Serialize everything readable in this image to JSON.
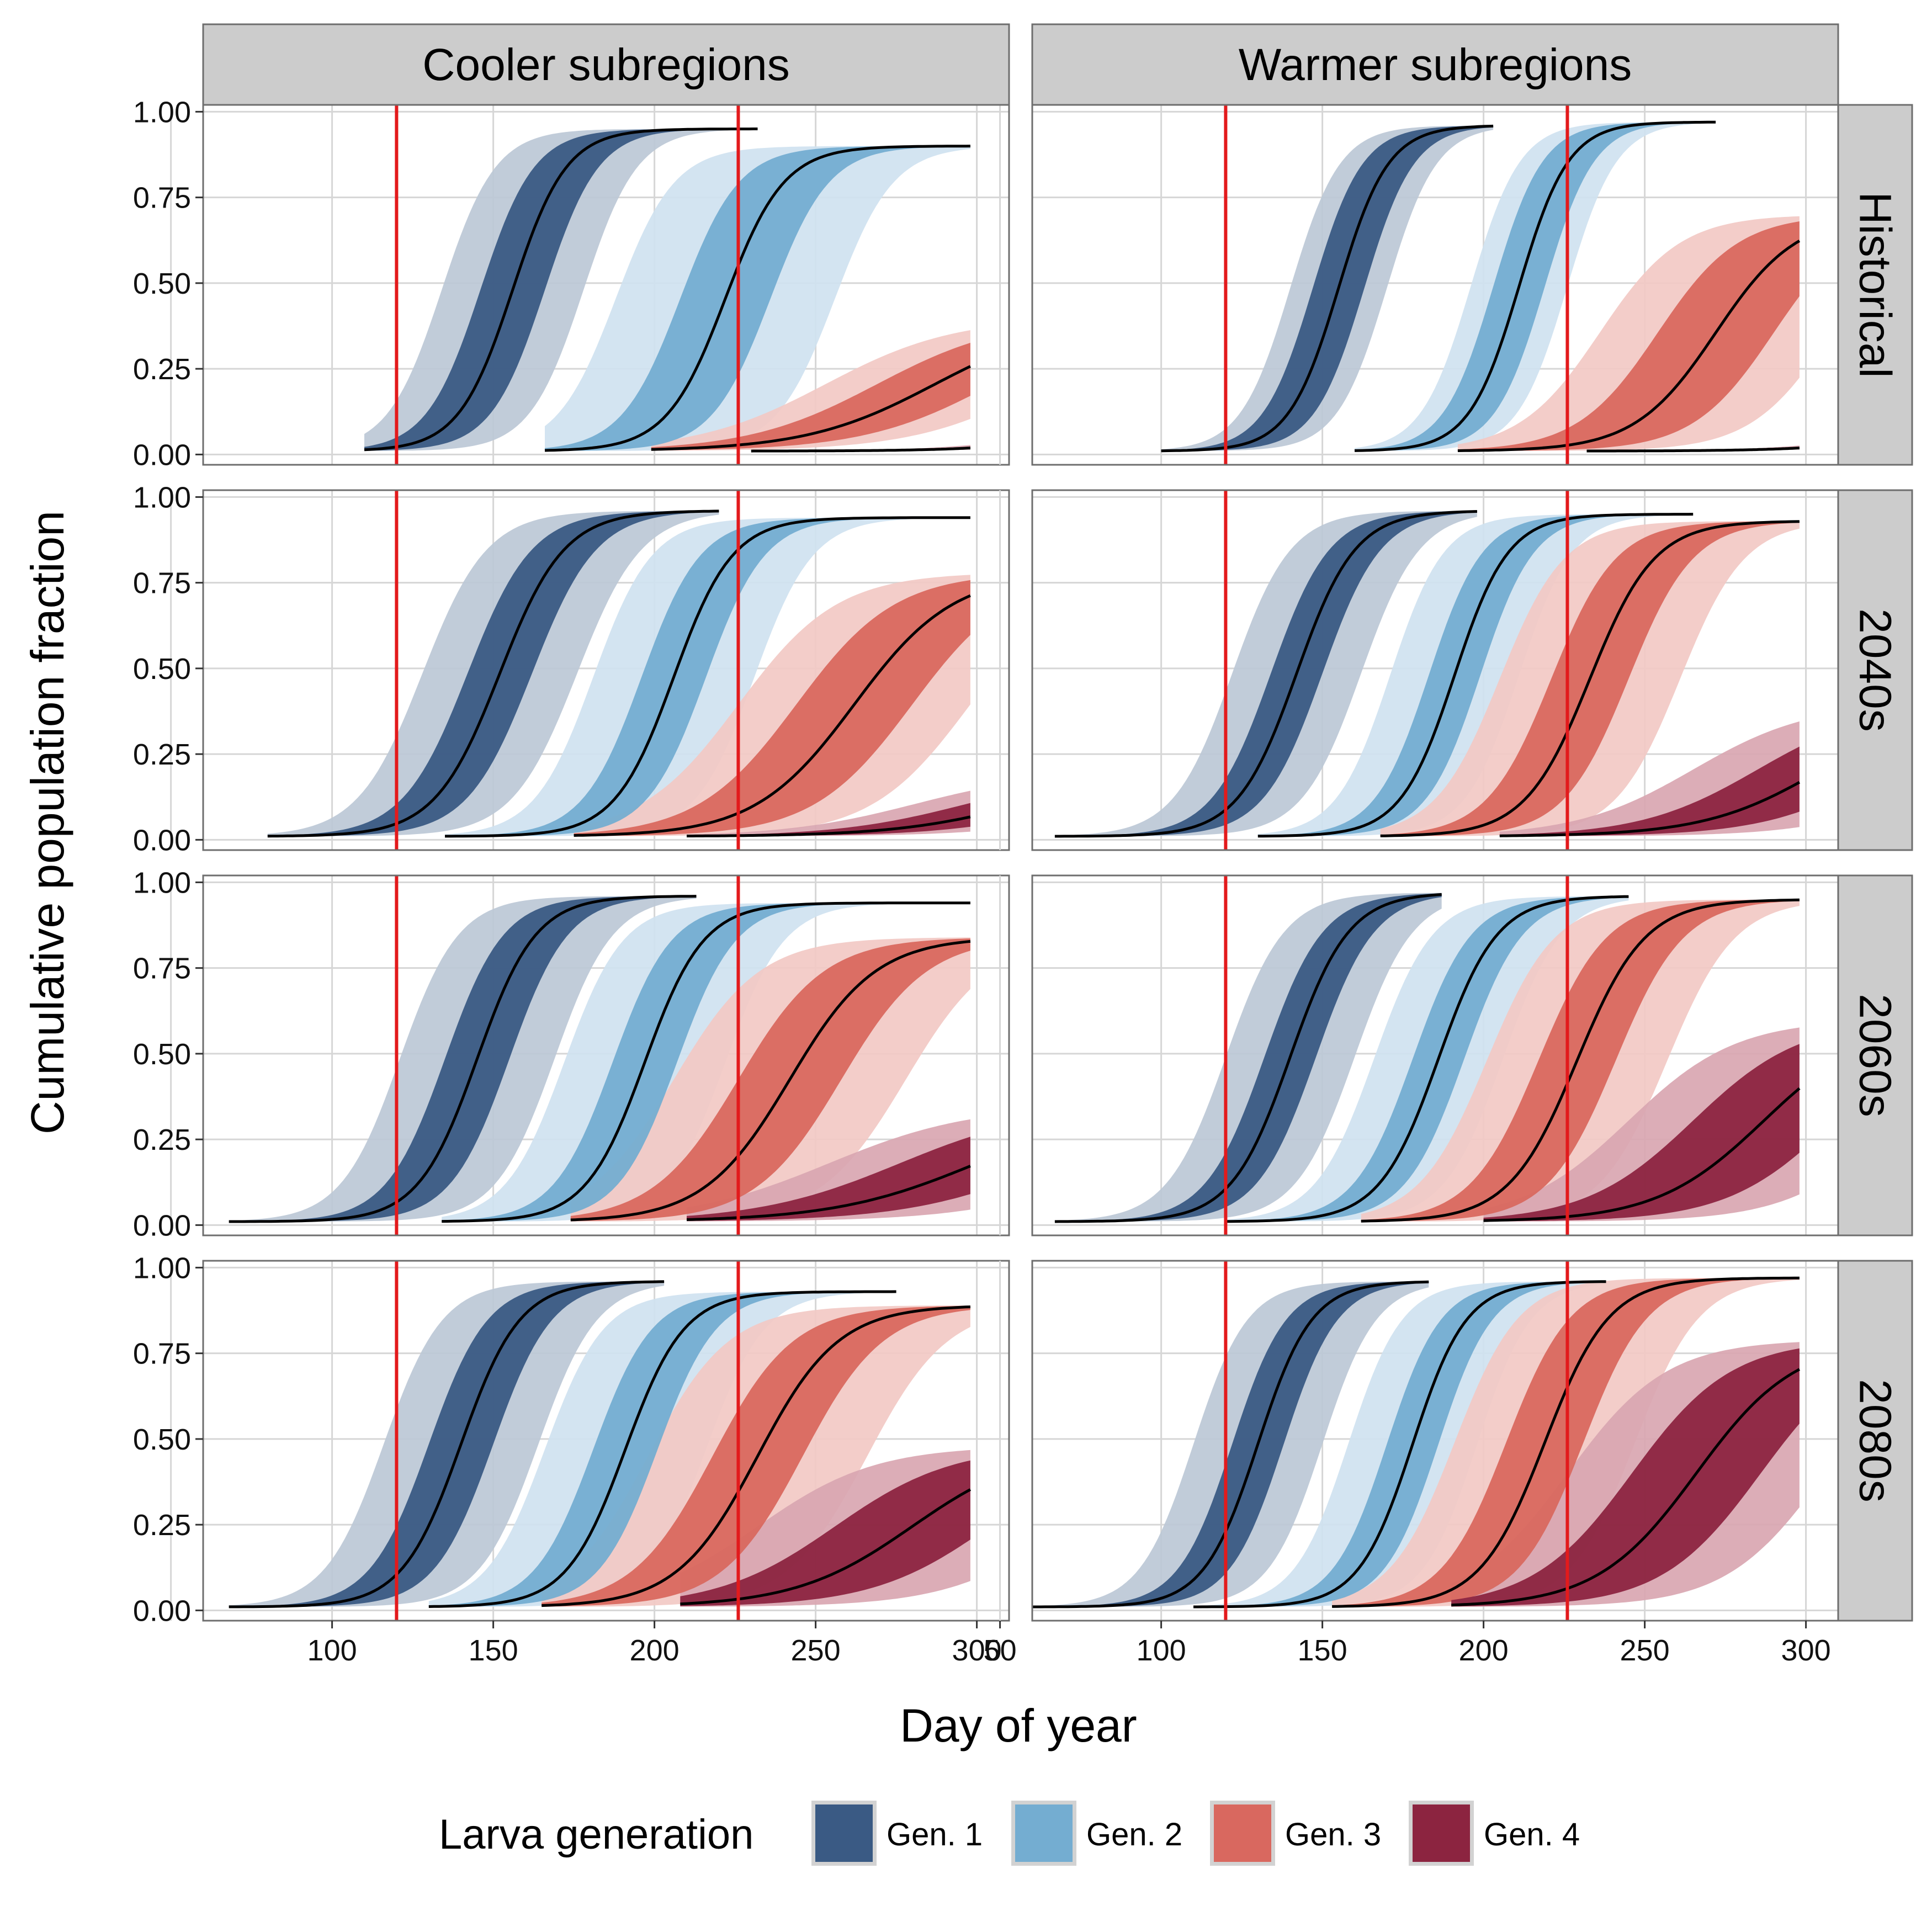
{
  "chart_data": {
    "type": "area",
    "title": "",
    "xlabel": "Day of year",
    "ylabel": "Cumulative population fraction",
    "xlim": [
      60,
      310
    ],
    "ylim": [
      -0.03,
      1.02
    ],
    "columns": [
      {
        "key": "cooler",
        "label": "Cooler subregions",
        "xticks": [
          100,
          150,
          200,
          250,
          300
        ],
        "xticklabels": [
          "100",
          "150",
          "200",
          "250",
          "300"
        ]
      },
      {
        "key": "warmer",
        "label": "Warmer subregions",
        "xticks": [
          50,
          100,
          150,
          200,
          250,
          300
        ],
        "xticklabels": [
          "50",
          "100",
          "150",
          "200",
          "250",
          "300"
        ]
      }
    ],
    "rows": [
      {
        "key": "historical",
        "label": "Historical"
      },
      {
        "key": "2040s",
        "label": "2040s"
      },
      {
        "key": "2060s",
        "label": "2060s"
      },
      {
        "key": "2080s",
        "label": "2080s"
      }
    ],
    "yticks": [
      0,
      0.25,
      0.5,
      0.75,
      1
    ],
    "yticklabels": [
      "0.00",
      "0.25",
      "0.50",
      "0.75",
      "1.00"
    ],
    "vlines": [
      120,
      226
    ],
    "vline_color": "#e31a1c",
    "grid": true,
    "legend": {
      "title": "Larva generation",
      "position": "bottom",
      "items": [
        {
          "label": "Gen. 1",
          "color": "#3a5a84"
        },
        {
          "label": "Gen. 2",
          "color": "#74add1"
        },
        {
          "label": "Gen. 3",
          "color": "#d9685f"
        },
        {
          "label": "Gen. 4",
          "color": "#8c2440"
        }
      ],
      "outer_colors": [
        "#bcc8d6",
        "#cfe2f0",
        "#f2c9c4",
        "#d9a6b1"
      ]
    },
    "series": [
      {
        "column": "cooler",
        "row": "historical",
        "curves": [
          {
            "gen": 1,
            "start": 110,
            "end": 232,
            "mid": 156,
            "k": 0.12,
            "max": 0.95,
            "base": 0.01,
            "inner": 10,
            "outer": 22
          },
          {
            "gen": 2,
            "start": 166,
            "end": 298,
            "mid": 222,
            "k": 0.11,
            "max": 0.9,
            "base": 0.01,
            "inner": 14,
            "outer": 34
          },
          {
            "gen": 3,
            "start": 199,
            "end": 298,
            "mid": 287,
            "k": 0.05,
            "max": 0.4,
            "base": 0.01,
            "inner": 18,
            "outer": 34
          },
          {
            "gen": 4,
            "start": 230,
            "end": 298,
            "mid": 330,
            "k": 0.06,
            "max": 0.08,
            "base": 0.01,
            "inner": 8,
            "outer": 14
          }
        ]
      },
      {
        "column": "warmer",
        "row": "historical",
        "curves": [
          {
            "gen": 1,
            "start": 100,
            "end": 203,
            "mid": 155,
            "k": 0.13,
            "max": 0.96,
            "base": 0.01,
            "inner": 8,
            "outer": 15
          },
          {
            "gen": 2,
            "start": 160,
            "end": 272,
            "mid": 211,
            "k": 0.13,
            "max": 0.97,
            "base": 0.01,
            "inner": 8,
            "outer": 15
          },
          {
            "gen": 3,
            "start": 192,
            "end": 298,
            "mid": 272,
            "k": 0.08,
            "max": 0.7,
            "base": 0.01,
            "inner": 18,
            "outer": 36
          },
          {
            "gen": 4,
            "start": 232,
            "end": 298,
            "mid": 330,
            "k": 0.06,
            "max": 0.08,
            "base": 0.01,
            "inner": 6,
            "outer": 12
          }
        ]
      },
      {
        "column": "cooler",
        "row": "2040s",
        "curves": [
          {
            "gen": 1,
            "start": 80,
            "end": 220,
            "mid": 152,
            "k": 0.1,
            "max": 0.96,
            "base": 0.01,
            "inner": 10,
            "outer": 24
          },
          {
            "gen": 2,
            "start": 135,
            "end": 298,
            "mid": 206,
            "k": 0.11,
            "max": 0.94,
            "base": 0.01,
            "inner": 10,
            "outer": 25
          },
          {
            "gen": 3,
            "start": 175,
            "end": 298,
            "mid": 262,
            "k": 0.065,
            "max": 0.78,
            "base": 0.01,
            "inner": 18,
            "outer": 36
          },
          {
            "gen": 4,
            "start": 210,
            "end": 298,
            "mid": 315,
            "k": 0.05,
            "max": 0.2,
            "base": 0.01,
            "inner": 18,
            "outer": 34
          }
        ]
      },
      {
        "column": "warmer",
        "row": "2040s",
        "curves": [
          {
            "gen": 1,
            "start": 67,
            "end": 198,
            "mid": 142,
            "k": 0.11,
            "max": 0.96,
            "base": 0.01,
            "inner": 8,
            "outer": 20
          },
          {
            "gen": 2,
            "start": 130,
            "end": 265,
            "mid": 191,
            "k": 0.12,
            "max": 0.95,
            "base": 0.01,
            "inner": 8,
            "outer": 20
          },
          {
            "gen": 3,
            "start": 168,
            "end": 298,
            "mid": 233,
            "k": 0.1,
            "max": 0.93,
            "base": 0.01,
            "inner": 12,
            "outer": 28
          },
          {
            "gen": 4,
            "start": 205,
            "end": 298,
            "mid": 305,
            "k": 0.055,
            "max": 0.4,
            "base": 0.01,
            "inner": 20,
            "outer": 40
          }
        ]
      },
      {
        "column": "cooler",
        "row": "2060s",
        "curves": [
          {
            "gen": 1,
            "start": 68,
            "end": 213,
            "mid": 145,
            "k": 0.11,
            "max": 0.96,
            "base": 0.01,
            "inner": 10,
            "outer": 24
          },
          {
            "gen": 2,
            "start": 134,
            "end": 298,
            "mid": 197,
            "k": 0.11,
            "max": 0.94,
            "base": 0.01,
            "inner": 10,
            "outer": 25
          },
          {
            "gen": 3,
            "start": 174,
            "end": 298,
            "mid": 242,
            "k": 0.075,
            "max": 0.84,
            "base": 0.01,
            "inner": 16,
            "outer": 36
          },
          {
            "gen": 4,
            "start": 210,
            "end": 298,
            "mid": 300,
            "k": 0.045,
            "max": 0.35,
            "base": 0.01,
            "inner": 24,
            "outer": 46
          }
        ]
      },
      {
        "column": "warmer",
        "row": "2060s",
        "curves": [
          {
            "gen": 1,
            "start": 67,
            "end": 187,
            "mid": 140,
            "k": 0.11,
            "max": 0.97,
            "base": 0.01,
            "inner": 8,
            "outer": 20
          },
          {
            "gen": 2,
            "start": 120,
            "end": 245,
            "mid": 186,
            "k": 0.11,
            "max": 0.96,
            "base": 0.01,
            "inner": 8,
            "outer": 20
          },
          {
            "gen": 3,
            "start": 162,
            "end": 298,
            "mid": 229,
            "k": 0.095,
            "max": 0.95,
            "base": 0.01,
            "inner": 12,
            "outer": 28
          },
          {
            "gen": 4,
            "start": 200,
            "end": 298,
            "mid": 287,
            "k": 0.06,
            "max": 0.6,
            "base": 0.01,
            "inner": 22,
            "outer": 42
          }
        ]
      },
      {
        "column": "cooler",
        "row": "2080s",
        "curves": [
          {
            "gen": 1,
            "start": 68,
            "end": 203,
            "mid": 140,
            "k": 0.11,
            "max": 0.96,
            "base": 0.01,
            "inner": 10,
            "outer": 24
          },
          {
            "gen": 2,
            "start": 130,
            "end": 275,
            "mid": 191,
            "k": 0.11,
            "max": 0.93,
            "base": 0.01,
            "inner": 10,
            "outer": 25
          },
          {
            "gen": 3,
            "start": 165,
            "end": 298,
            "mid": 232,
            "k": 0.08,
            "max": 0.89,
            "base": 0.01,
            "inner": 14,
            "outer": 34
          },
          {
            "gen": 4,
            "start": 208,
            "end": 298,
            "mid": 280,
            "k": 0.055,
            "max": 0.48,
            "base": 0.01,
            "inner": 24,
            "outer": 48
          }
        ]
      },
      {
        "column": "warmer",
        "row": "2080s",
        "curves": [
          {
            "gen": 1,
            "start": 57,
            "end": 183,
            "mid": 130,
            "k": 0.12,
            "max": 0.96,
            "base": 0.01,
            "inner": 8,
            "outer": 20
          },
          {
            "gen": 2,
            "start": 110,
            "end": 238,
            "mid": 178,
            "k": 0.12,
            "max": 0.96,
            "base": 0.01,
            "inner": 8,
            "outer": 20
          },
          {
            "gen": 3,
            "start": 153,
            "end": 298,
            "mid": 219,
            "k": 0.1,
            "max": 0.97,
            "base": 0.01,
            "inner": 12,
            "outer": 28
          },
          {
            "gen": 4,
            "start": 190,
            "end": 298,
            "mid": 266,
            "k": 0.065,
            "max": 0.79,
            "base": 0.01,
            "inner": 20,
            "outer": 40
          }
        ]
      }
    ]
  }
}
